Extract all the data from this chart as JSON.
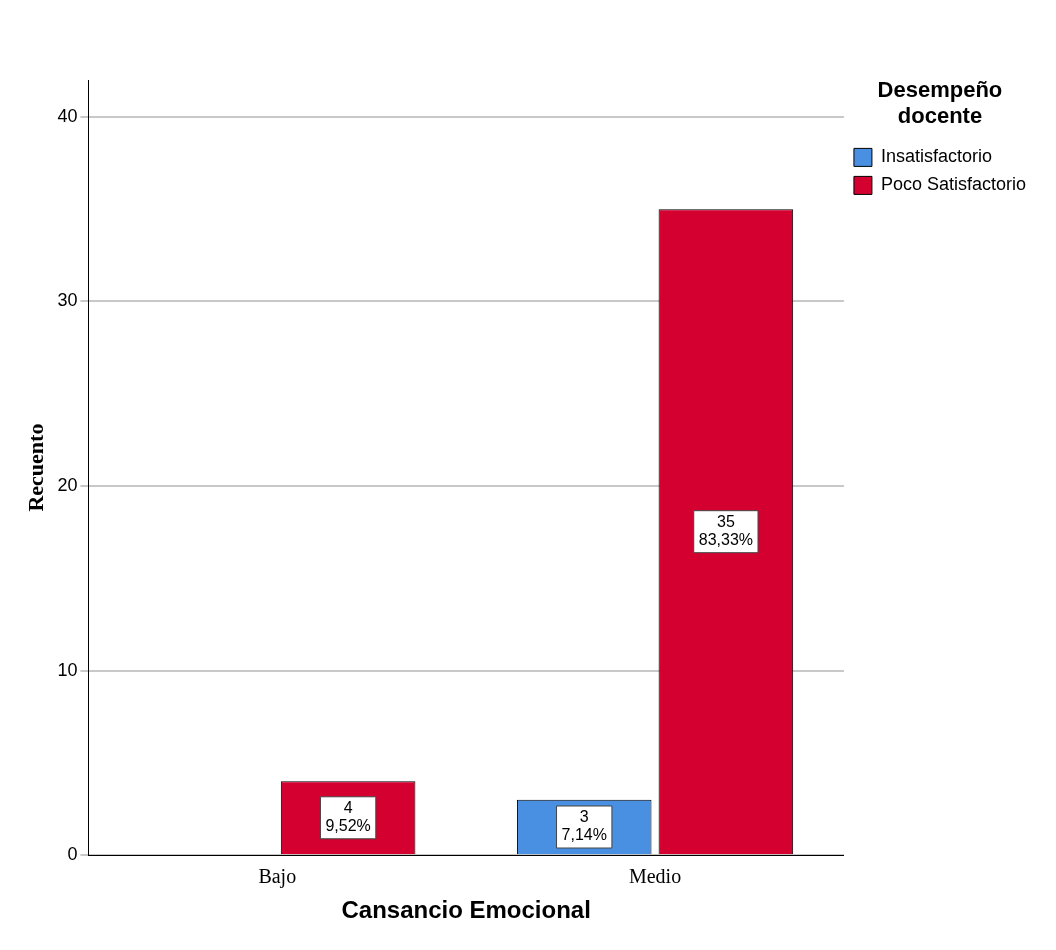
{
  "chart_data": {
    "type": "bar",
    "xlabel": "Cansancio Emocional",
    "ylabel": "Recuento",
    "legend_title": "Desempeño docente",
    "categories": [
      "Bajo",
      "Medio"
    ],
    "series": [
      {
        "name": "Insatisfactorio",
        "color": "#4a90e2",
        "values": [
          null,
          3
        ],
        "value_labels": [
          null,
          "3\n7,14%"
        ]
      },
      {
        "name": "Poco Satisfactorio",
        "color": "#d40030",
        "values": [
          4,
          35
        ],
        "value_labels": [
          "4\n9,52%",
          "35\n83,33%"
        ]
      }
    ],
    "ylim": [
      0,
      42
    ],
    "yticks": [
      0,
      10,
      20,
      30,
      40
    ],
    "grid": "y",
    "legend": "top right"
  }
}
